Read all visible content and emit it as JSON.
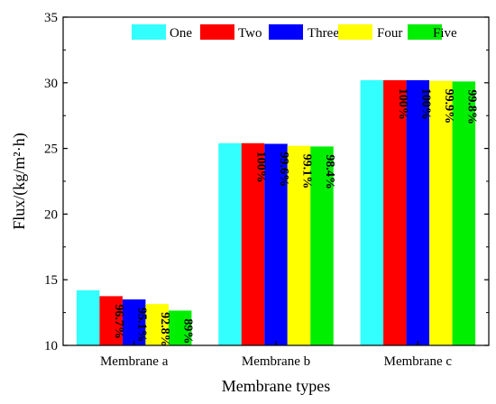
{
  "chart_data": {
    "type": "bar",
    "categories": [
      "Membrane a",
      "Membrane b",
      "Membrane c"
    ],
    "series": [
      {
        "name": "One",
        "color": "#33ffff",
        "values": [
          14.2,
          25.4,
          30.2
        ]
      },
      {
        "name": "Two",
        "color": "#ff0000",
        "values": [
          13.75,
          25.4,
          30.2
        ]
      },
      {
        "name": "Three",
        "color": "#0000ff",
        "values": [
          13.5,
          25.35,
          30.2
        ]
      },
      {
        "name": "Four",
        "color": "#ffff00",
        "values": [
          13.15,
          25.2,
          30.15
        ]
      },
      {
        "name": "Five",
        "color": "#00ee00",
        "values": [
          12.65,
          25.15,
          30.1
        ]
      }
    ],
    "bar_labels": [
      [
        "",
        "96.7%",
        "95.1%",
        "92.8%",
        "89%"
      ],
      [
        "",
        "100%",
        "99.6%",
        "99.1%",
        "98.4%"
      ],
      [
        "",
        "100%",
        "100%",
        "99.9%",
        "99.8%"
      ]
    ],
    "xlabel": "Membrane types",
    "ylabel": "Flux/(kg/m²·h)",
    "ylim": [
      10,
      35
    ],
    "yticks": [
      "10",
      "15",
      "20",
      "25",
      "30",
      "35"
    ],
    "legend_position": "top-right",
    "grid": false
  }
}
